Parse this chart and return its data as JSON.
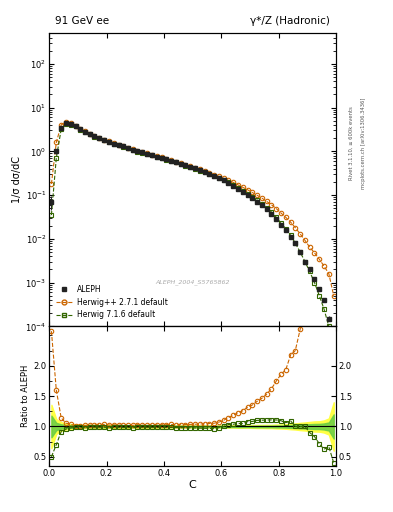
{
  "title_left": "91 GeV ee",
  "title_right": "γ*/Z (Hadronic)",
  "ylabel_main": "1/σ dσ/dC",
  "ylabel_ratio": "Ratio to ALEPH",
  "xlabel": "C",
  "watermark": "ALEPH_2004_S5765862",
  "right_label_top": "Rivet 3.1.10, ≥ 600k events",
  "right_label_bot": "mcplots.cern.ch [arXiv:1306.3436]",
  "ylim_main": [
    0.0001,
    500
  ],
  "ylim_ratio": [
    0.35,
    2.65
  ],
  "xlim": [
    0.0,
    1.0
  ],
  "aleph_x": [
    0.008,
    0.025,
    0.042,
    0.058,
    0.075,
    0.092,
    0.108,
    0.125,
    0.142,
    0.158,
    0.175,
    0.192,
    0.208,
    0.225,
    0.242,
    0.258,
    0.275,
    0.292,
    0.308,
    0.325,
    0.342,
    0.358,
    0.375,
    0.392,
    0.408,
    0.425,
    0.442,
    0.458,
    0.475,
    0.492,
    0.508,
    0.525,
    0.542,
    0.558,
    0.575,
    0.592,
    0.608,
    0.625,
    0.642,
    0.658,
    0.675,
    0.692,
    0.708,
    0.725,
    0.742,
    0.758,
    0.775,
    0.792,
    0.808,
    0.825,
    0.842,
    0.858,
    0.875,
    0.892,
    0.908,
    0.925,
    0.942,
    0.958,
    0.975,
    0.992
  ],
  "aleph_y": [
    0.07,
    1.0,
    3.5,
    4.5,
    4.2,
    3.8,
    3.2,
    2.8,
    2.5,
    2.2,
    2.0,
    1.8,
    1.65,
    1.5,
    1.4,
    1.3,
    1.2,
    1.1,
    1.0,
    0.95,
    0.88,
    0.82,
    0.76,
    0.71,
    0.66,
    0.61,
    0.57,
    0.52,
    0.48,
    0.44,
    0.41,
    0.37,
    0.34,
    0.31,
    0.28,
    0.25,
    0.22,
    0.19,
    0.165,
    0.14,
    0.12,
    0.1,
    0.085,
    0.07,
    0.058,
    0.047,
    0.037,
    0.028,
    0.021,
    0.016,
    0.011,
    0.008,
    0.005,
    0.003,
    0.002,
    0.0012,
    0.0007,
    0.0004,
    0.00015,
    2.5e-05
  ],
  "aleph_yerr": [
    0.025,
    0.12,
    0.25,
    0.22,
    0.18,
    0.14,
    0.09,
    0.075,
    0.065,
    0.055,
    0.048,
    0.044,
    0.038,
    0.035,
    0.03,
    0.028,
    0.025,
    0.022,
    0.02,
    0.018,
    0.017,
    0.015,
    0.014,
    0.013,
    0.011,
    0.01,
    0.009,
    0.009,
    0.008,
    0.007,
    0.007,
    0.006,
    0.006,
    0.005,
    0.005,
    0.004,
    0.004,
    0.0035,
    0.003,
    0.003,
    0.0025,
    0.002,
    0.002,
    0.0018,
    0.0015,
    0.0013,
    0.001,
    0.0009,
    0.0007,
    0.0006,
    0.0005,
    0.0004,
    0.0003,
    0.0002,
    0.00015,
    0.0001,
    6e-05,
    4e-05,
    2e-05,
    1e-05
  ],
  "herwig271_x": [
    0.008,
    0.025,
    0.042,
    0.058,
    0.075,
    0.092,
    0.108,
    0.125,
    0.142,
    0.158,
    0.175,
    0.192,
    0.208,
    0.225,
    0.242,
    0.258,
    0.275,
    0.292,
    0.308,
    0.325,
    0.342,
    0.358,
    0.375,
    0.392,
    0.408,
    0.425,
    0.442,
    0.458,
    0.475,
    0.492,
    0.508,
    0.525,
    0.542,
    0.558,
    0.575,
    0.592,
    0.608,
    0.625,
    0.642,
    0.658,
    0.675,
    0.692,
    0.708,
    0.725,
    0.742,
    0.758,
    0.775,
    0.792,
    0.808,
    0.825,
    0.842,
    0.858,
    0.875,
    0.892,
    0.908,
    0.925,
    0.942,
    0.958,
    0.975,
    0.992
  ],
  "herwig271_y": [
    0.18,
    1.6,
    4.0,
    4.75,
    4.35,
    3.85,
    3.25,
    2.85,
    2.55,
    2.26,
    2.06,
    1.86,
    1.69,
    1.54,
    1.43,
    1.33,
    1.22,
    1.12,
    1.03,
    0.97,
    0.9,
    0.84,
    0.78,
    0.73,
    0.68,
    0.63,
    0.585,
    0.535,
    0.495,
    0.455,
    0.425,
    0.385,
    0.355,
    0.325,
    0.295,
    0.268,
    0.242,
    0.218,
    0.195,
    0.172,
    0.151,
    0.132,
    0.115,
    0.099,
    0.085,
    0.072,
    0.06,
    0.049,
    0.039,
    0.031,
    0.024,
    0.018,
    0.013,
    0.0092,
    0.0065,
    0.0048,
    0.0034,
    0.0024,
    0.0016,
    0.0005
  ],
  "herwig716_x": [
    0.008,
    0.025,
    0.042,
    0.058,
    0.075,
    0.092,
    0.108,
    0.125,
    0.142,
    0.158,
    0.175,
    0.192,
    0.208,
    0.225,
    0.242,
    0.258,
    0.275,
    0.292,
    0.308,
    0.325,
    0.342,
    0.358,
    0.375,
    0.392,
    0.408,
    0.425,
    0.442,
    0.458,
    0.475,
    0.492,
    0.508,
    0.525,
    0.542,
    0.558,
    0.575,
    0.592,
    0.608,
    0.625,
    0.642,
    0.658,
    0.675,
    0.692,
    0.708,
    0.725,
    0.742,
    0.758,
    0.775,
    0.792,
    0.808,
    0.825,
    0.842,
    0.858,
    0.875,
    0.892,
    0.908,
    0.925,
    0.942,
    0.958,
    0.975,
    0.992
  ],
  "herwig716_y": [
    0.035,
    0.7,
    3.2,
    4.3,
    4.1,
    3.75,
    3.15,
    2.75,
    2.48,
    2.18,
    1.98,
    1.78,
    1.62,
    1.48,
    1.38,
    1.28,
    1.18,
    1.08,
    0.99,
    0.94,
    0.87,
    0.81,
    0.75,
    0.7,
    0.65,
    0.6,
    0.56,
    0.51,
    0.47,
    0.43,
    0.4,
    0.36,
    0.33,
    0.3,
    0.27,
    0.245,
    0.22,
    0.196,
    0.171,
    0.147,
    0.126,
    0.108,
    0.092,
    0.077,
    0.064,
    0.052,
    0.041,
    0.031,
    0.023,
    0.017,
    0.012,
    0.008,
    0.005,
    0.003,
    0.0018,
    0.001,
    0.0005,
    0.00025,
    0.0001,
    1e-05
  ],
  "herwig271_color": "#cc6600",
  "herwig716_color": "#336600",
  "aleph_color": "#222222",
  "bg_color": "#ffffff"
}
